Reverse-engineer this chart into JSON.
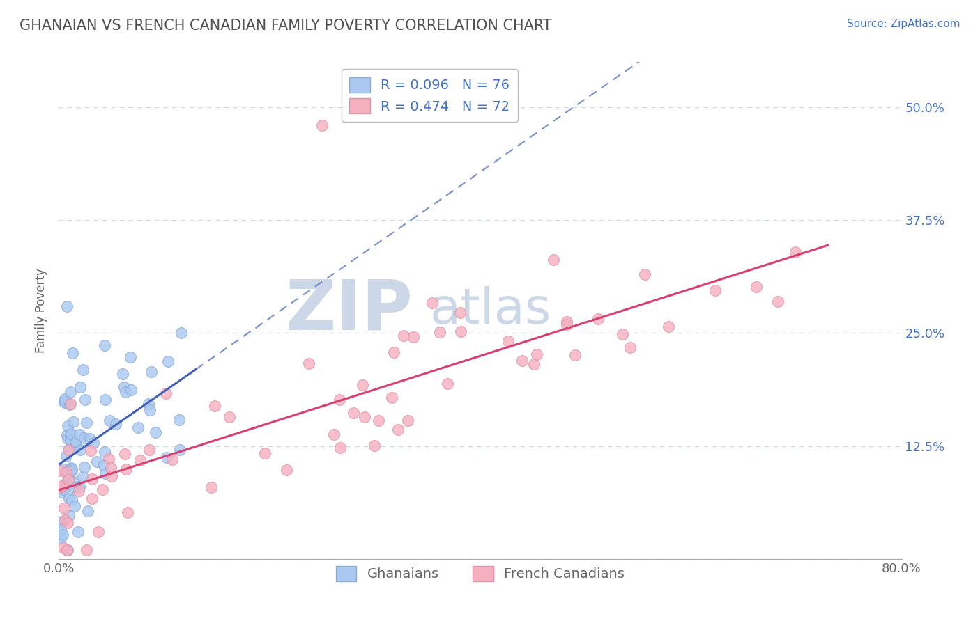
{
  "title": "GHANAIAN VS FRENCH CANADIAN FAMILY POVERTY CORRELATION CHART",
  "source_text": "Source: ZipAtlas.com",
  "ylabel": "Family Poverty",
  "xlim": [
    0.0,
    0.8
  ],
  "ylim": [
    0.0,
    0.55
  ],
  "ytick_positions": [
    0.0,
    0.125,
    0.25,
    0.375,
    0.5
  ],
  "ytick_labels_right": [
    "",
    "12.5%",
    "25.0%",
    "37.5%",
    "50.0%"
  ],
  "ghanaian_color": "#aac8f0",
  "ghanaian_edge": "#88aadd",
  "french_color": "#f5b0c0",
  "french_edge": "#e090a8",
  "trendline_ghanaian_color": "#4060b8",
  "trendline_french_color": "#d84070",
  "grid_color": "#c8d8e8",
  "background_color": "#ffffff",
  "R_ghanaian": 0.096,
  "N_ghanaian": 76,
  "R_french": 0.474,
  "N_french": 72,
  "legend_label_ghanaian": "Ghanaians",
  "legend_label_french": "French Canadians",
  "title_color": "#505050",
  "source_color": "#4472c4",
  "watermark_color": "#ccd8e8",
  "marker_size": 130,
  "title_fontsize": 15,
  "tick_fontsize": 13,
  "legend_fontsize": 14
}
